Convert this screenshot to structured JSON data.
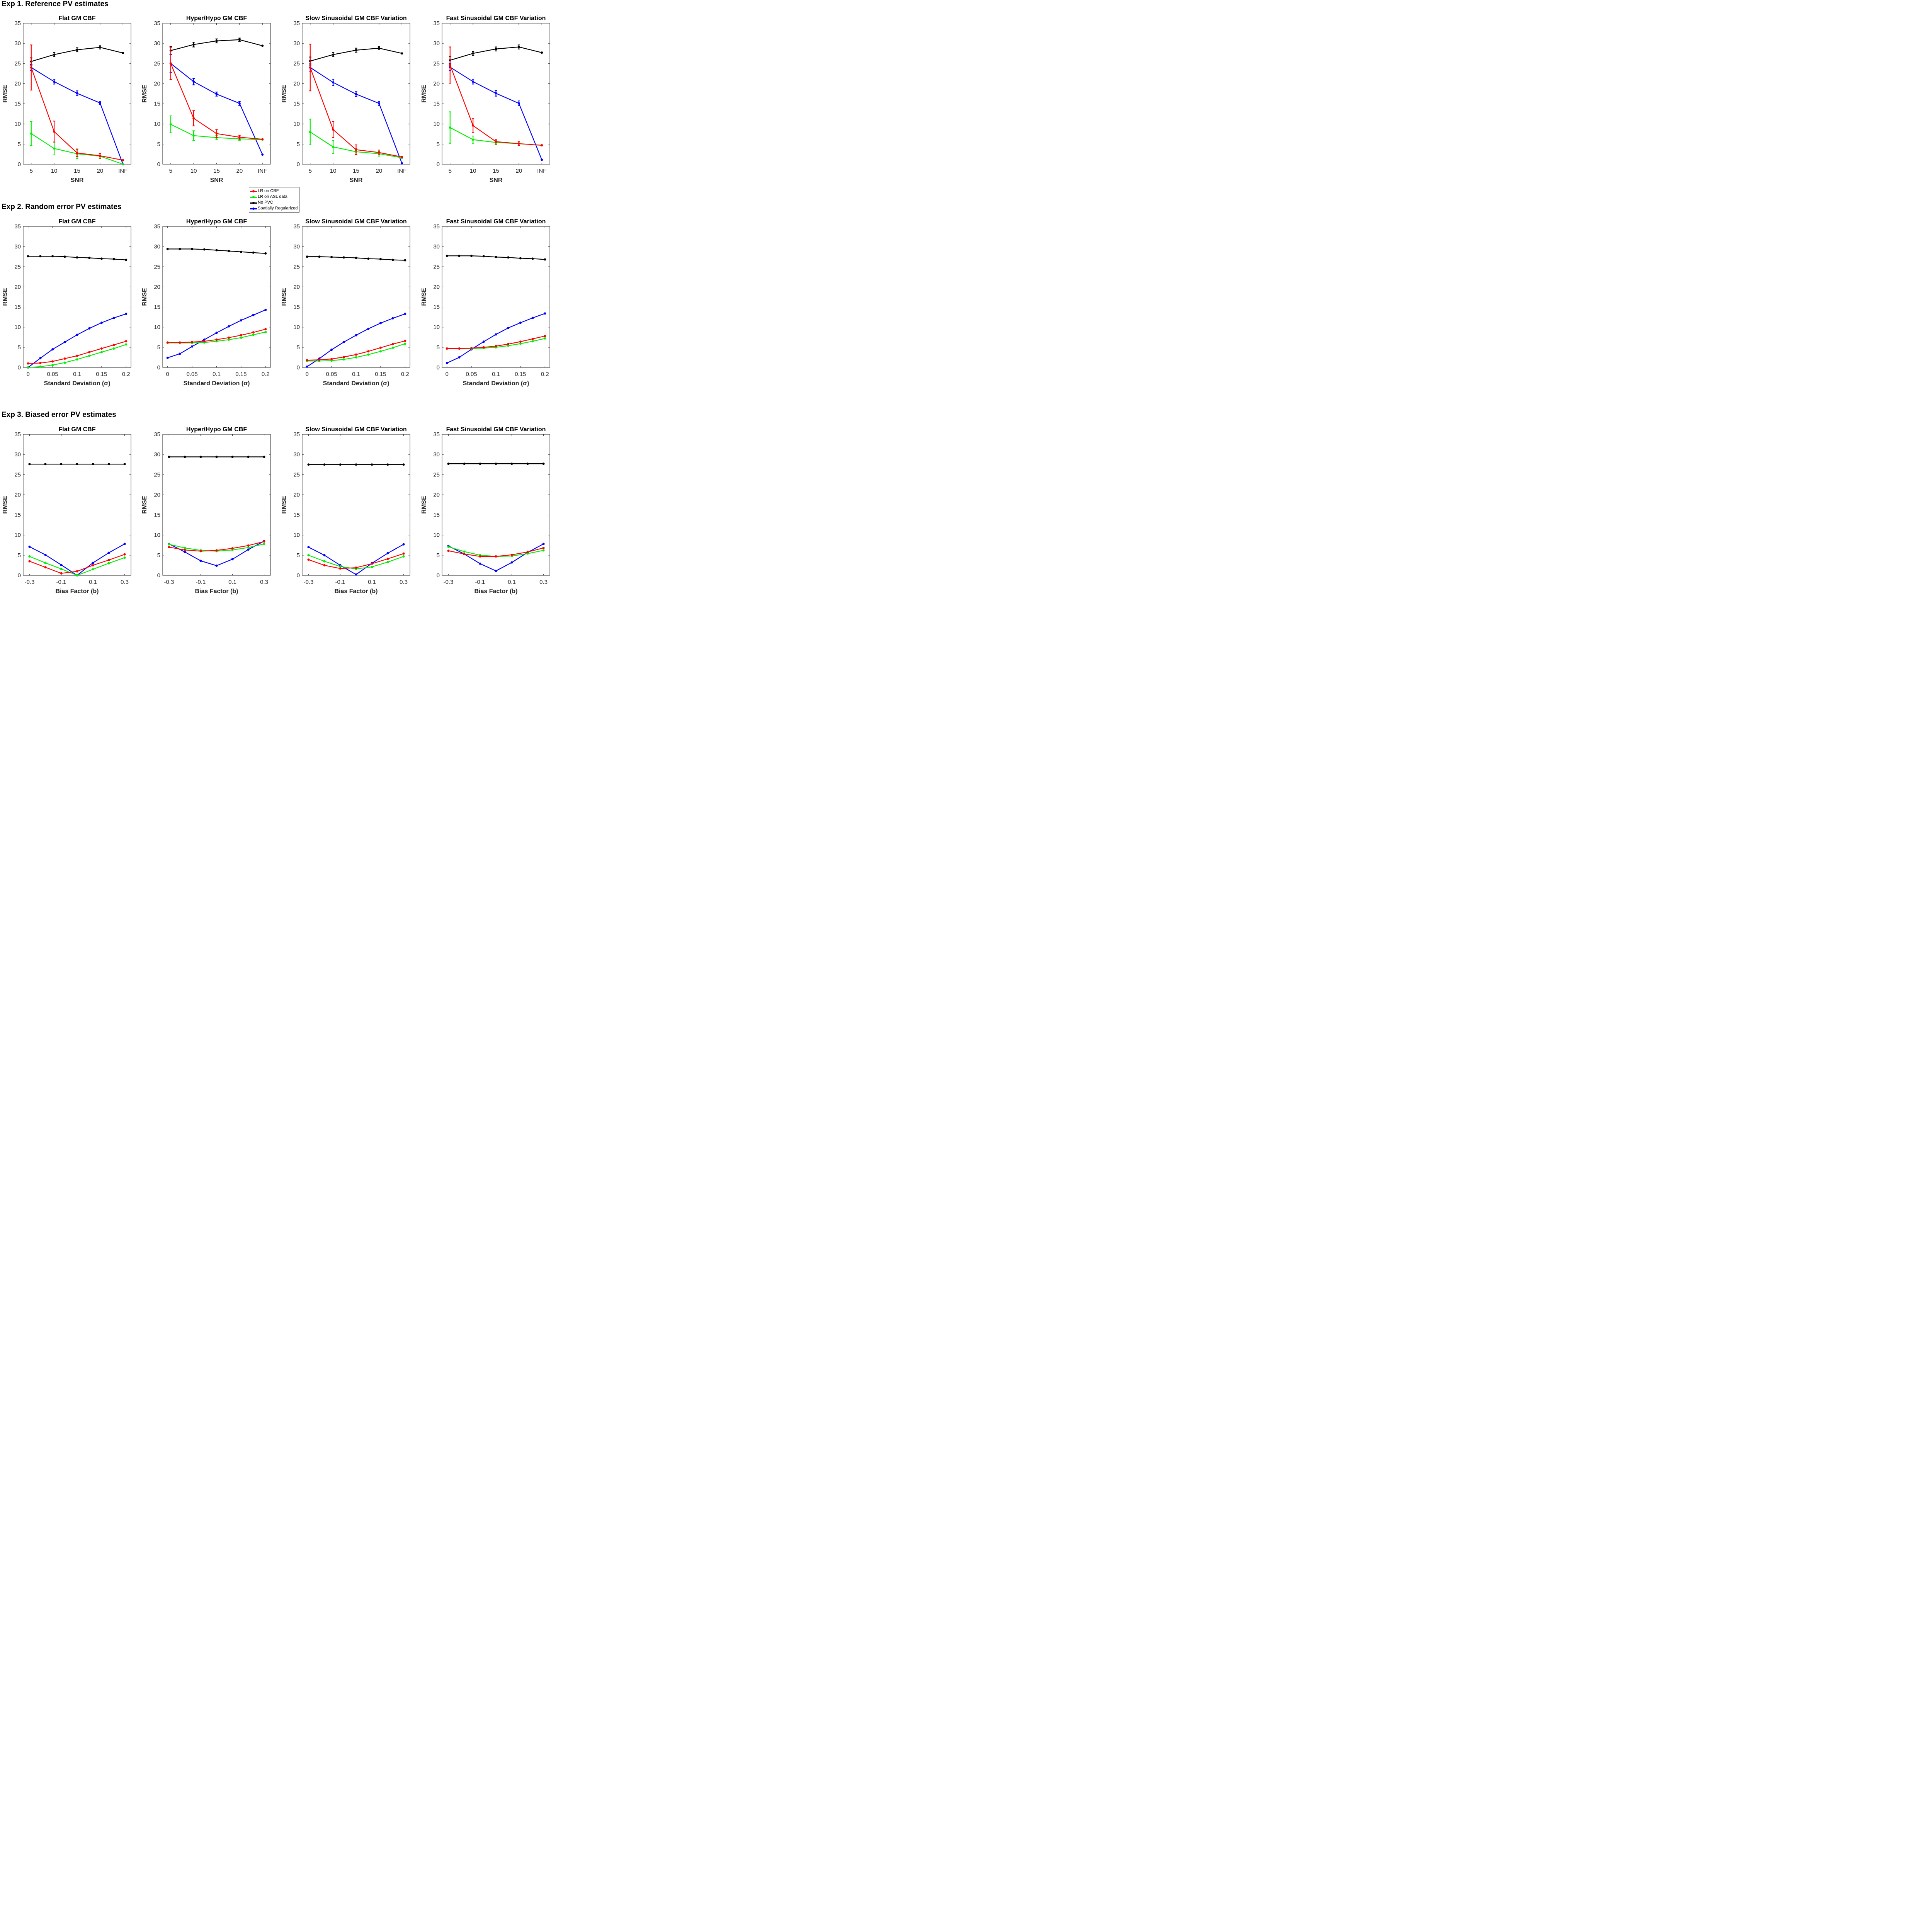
{
  "sections": [
    {
      "title": "Exp 1. Reference PV estimates"
    },
    {
      "title": "Exp 2. Random error PV estimates"
    },
    {
      "title": "Exp 3. Biased error PV estimates"
    }
  ],
  "legend": [
    {
      "name": "LR on CBF",
      "color": "#ff0000"
    },
    {
      "name": "LR on ASL data",
      "color": "#00ee00"
    },
    {
      "name": "No PVC",
      "color": "#000000"
    },
    {
      "name": "Spatially Regularized",
      "color": "#0000ff"
    }
  ],
  "chart_data": [
    {
      "type": "line",
      "section": 0,
      "title": "Flat GM CBF",
      "xlabel": "SNR",
      "ylabel": "RMSE",
      "ylim": [
        0,
        35
      ],
      "yticks": [
        0,
        5,
        10,
        15,
        20,
        25,
        30,
        35
      ],
      "categories": [
        "5",
        "10",
        "15",
        "20",
        "INF"
      ],
      "series": [
        {
          "name": "LR on CBF",
          "values": [
            24.0,
            8.1,
            2.8,
            2.1,
            1.0
          ],
          "err": [
            5.6,
            2.6,
            0.9,
            0.6,
            0
          ]
        },
        {
          "name": "LR on ASL data",
          "values": [
            7.6,
            3.9,
            2.6,
            2.0,
            0.0
          ],
          "err": [
            3.0,
            1.6,
            1.2,
            0.6,
            0
          ]
        },
        {
          "name": "No PVC",
          "values": [
            25.5,
            27.2,
            28.4,
            29.0,
            27.6
          ],
          "err": [
            0.9,
            0.5,
            0.5,
            0.4,
            0
          ]
        },
        {
          "name": "Spatially Regularized",
          "values": [
            24.0,
            20.5,
            17.6,
            15.2,
            0.0
          ],
          "err": [
            0.8,
            0.6,
            0.6,
            0.4,
            0
          ]
        }
      ]
    },
    {
      "type": "line",
      "section": 0,
      "title": "Hyper/Hypo GM CBF",
      "xlabel": "SNR",
      "ylabel": "RMSE",
      "ylim": [
        0,
        35
      ],
      "yticks": [
        0,
        5,
        10,
        15,
        20,
        25,
        30,
        35
      ],
      "categories": [
        "5",
        "10",
        "15",
        "20",
        "INF"
      ],
      "series": [
        {
          "name": "LR on CBF",
          "values": [
            25.0,
            11.4,
            7.6,
            6.7,
            6.2
          ],
          "err": [
            4.0,
            1.9,
            1.0,
            0.5,
            0
          ]
        },
        {
          "name": "LR on ASL data",
          "values": [
            9.9,
            7.1,
            6.6,
            6.3,
            6.1
          ],
          "err": [
            2.1,
            1.2,
            0.5,
            0.4,
            0
          ]
        },
        {
          "name": "No PVC",
          "values": [
            28.2,
            29.7,
            30.6,
            30.9,
            29.4
          ],
          "err": [
            1.0,
            0.6,
            0.5,
            0.4,
            0
          ]
        },
        {
          "name": "Spatially Regularized",
          "values": [
            25.0,
            20.5,
            17.4,
            15.1,
            2.4
          ],
          "err": [
            2.2,
            0.8,
            0.5,
            0.5,
            0
          ]
        }
      ]
    },
    {
      "type": "line",
      "section": 0,
      "title": "Slow Sinusoidal GM CBF Variation",
      "xlabel": "SNR",
      "ylabel": "RMSE",
      "ylim": [
        0,
        35
      ],
      "yticks": [
        0,
        5,
        10,
        15,
        20,
        25,
        30,
        35
      ],
      "categories": [
        "5",
        "10",
        "15",
        "20",
        "INF"
      ],
      "series": [
        {
          "name": "LR on CBF",
          "values": [
            24.0,
            8.6,
            3.6,
            2.9,
            1.8
          ],
          "err": [
            5.8,
            2.0,
            1.2,
            0.6,
            0
          ]
        },
        {
          "name": "LR on ASL data",
          "values": [
            8.0,
            4.3,
            3.1,
            2.6,
            1.6
          ],
          "err": [
            3.2,
            1.6,
            0.8,
            0.6,
            0
          ]
        },
        {
          "name": "No PVC",
          "values": [
            25.6,
            27.2,
            28.3,
            28.8,
            27.5
          ],
          "err": [
            1.0,
            0.5,
            0.5,
            0.4,
            0
          ]
        },
        {
          "name": "Spatially Regularized",
          "values": [
            24.0,
            20.3,
            17.4,
            15.1,
            0.2
          ],
          "err": [
            0.9,
            0.8,
            0.6,
            0.5,
            0
          ]
        }
      ]
    },
    {
      "type": "line",
      "section": 0,
      "title": "Fast Sinusoidal GM CBF Variation",
      "xlabel": "SNR",
      "ylabel": "RMSE",
      "ylim": [
        0,
        35
      ],
      "yticks": [
        0,
        5,
        10,
        15,
        20,
        25,
        30,
        35
      ],
      "categories": [
        "5",
        "10",
        "15",
        "20",
        "INF"
      ],
      "series": [
        {
          "name": "LR on CBF",
          "values": [
            24.6,
            9.6,
            5.6,
            5.1,
            4.7
          ],
          "err": [
            4.5,
            1.7,
            0.6,
            0.5,
            0
          ]
        },
        {
          "name": "LR on ASL data",
          "values": [
            9.1,
            6.1,
            5.4,
            5.1,
            4.7
          ],
          "err": [
            3.9,
            0.9,
            0.5,
            0.4,
            0
          ]
        },
        {
          "name": "No PVC",
          "values": [
            25.8,
            27.5,
            28.6,
            29.1,
            27.7
          ],
          "err": [
            0.9,
            0.5,
            0.5,
            0.5,
            0
          ]
        },
        {
          "name": "Spatially Regularized",
          "values": [
            24.1,
            20.5,
            17.6,
            15.1,
            1.1
          ],
          "err": [
            0.9,
            0.6,
            0.7,
            0.6,
            0
          ]
        }
      ]
    },
    {
      "type": "line",
      "section": 1,
      "title": "Flat GM CBF",
      "xlabel": "Standard Deviation (σ)",
      "ylabel": "RMSE",
      "ylim": [
        0,
        35
      ],
      "yticks": [
        0,
        5,
        10,
        15,
        20,
        25,
        30,
        35
      ],
      "x": [
        0,
        0.025,
        0.05,
        0.075,
        0.1,
        0.125,
        0.15,
        0.175,
        0.2
      ],
      "xticks": [
        0,
        0.05,
        0.1,
        0.15,
        0.2
      ],
      "xticklabels": [
        "0",
        "0.05",
        "0.1",
        "0.15",
        "0.2"
      ],
      "xlim": [
        -0.01,
        0.21
      ],
      "series": [
        {
          "name": "LR on CBF",
          "values": [
            1.0,
            1.1,
            1.5,
            2.2,
            2.9,
            3.8,
            4.7,
            5.6,
            6.5
          ]
        },
        {
          "name": "LR on ASL data",
          "values": [
            0.0,
            0.2,
            0.6,
            1.2,
            2.0,
            2.9,
            3.8,
            4.7,
            5.7
          ]
        },
        {
          "name": "No PVC",
          "values": [
            27.6,
            27.6,
            27.6,
            27.5,
            27.3,
            27.2,
            27.0,
            26.9,
            26.7
          ]
        },
        {
          "name": "Spatially Regularized",
          "values": [
            0.0,
            2.3,
            4.5,
            6.3,
            8.1,
            9.7,
            11.1,
            12.3,
            13.3
          ]
        }
      ]
    },
    {
      "type": "line",
      "section": 1,
      "title": "Hyper/Hypo GM CBF",
      "xlabel": "Standard Deviation (σ)",
      "ylabel": "RMSE",
      "ylim": [
        0,
        35
      ],
      "yticks": [
        0,
        5,
        10,
        15,
        20,
        25,
        30,
        35
      ],
      "x": [
        0,
        0.025,
        0.05,
        0.075,
        0.1,
        0.125,
        0.15,
        0.175,
        0.2
      ],
      "xticks": [
        0,
        0.05,
        0.1,
        0.15,
        0.2
      ],
      "xticklabels": [
        "0",
        "0.05",
        "0.1",
        "0.15",
        "0.2"
      ],
      "xlim": [
        -0.01,
        0.21
      ],
      "series": [
        {
          "name": "LR on CBF",
          "values": [
            6.2,
            6.2,
            6.3,
            6.5,
            6.9,
            7.4,
            8.0,
            8.7,
            9.5
          ]
        },
        {
          "name": "LR on ASL data",
          "values": [
            6.1,
            6.1,
            6.1,
            6.2,
            6.5,
            6.9,
            7.4,
            8.1,
            8.8
          ]
        },
        {
          "name": "No PVC",
          "values": [
            29.4,
            29.4,
            29.4,
            29.3,
            29.1,
            28.9,
            28.7,
            28.5,
            28.3
          ]
        },
        {
          "name": "Spatially Regularized",
          "values": [
            2.4,
            3.4,
            5.2,
            6.9,
            8.6,
            10.2,
            11.7,
            13.0,
            14.3
          ]
        }
      ]
    },
    {
      "type": "line",
      "section": 1,
      "title": "Slow Sinusoidal GM CBF Variation",
      "xlabel": "Standard Deviation (σ)",
      "ylabel": "RMSE",
      "ylim": [
        0,
        35
      ],
      "yticks": [
        0,
        5,
        10,
        15,
        20,
        25,
        30,
        35
      ],
      "x": [
        0,
        0.025,
        0.05,
        0.075,
        0.1,
        0.125,
        0.15,
        0.175,
        0.2
      ],
      "xticks": [
        0,
        0.05,
        0.1,
        0.15,
        0.2
      ],
      "xticklabels": [
        "0",
        "0.05",
        "0.1",
        "0.15",
        "0.2"
      ],
      "xlim": [
        -0.01,
        0.21
      ],
      "series": [
        {
          "name": "LR on CBF",
          "values": [
            1.8,
            1.9,
            2.1,
            2.6,
            3.2,
            4.0,
            4.9,
            5.8,
            6.6
          ]
        },
        {
          "name": "LR on ASL data",
          "values": [
            1.6,
            1.6,
            1.7,
            2.0,
            2.5,
            3.2,
            4.0,
            4.9,
            5.9
          ]
        },
        {
          "name": "No PVC",
          "values": [
            27.5,
            27.5,
            27.4,
            27.3,
            27.2,
            27.0,
            26.9,
            26.7,
            26.6
          ]
        },
        {
          "name": "Spatially Regularized",
          "values": [
            0.2,
            2.2,
            4.4,
            6.3,
            8.0,
            9.6,
            11.0,
            12.2,
            13.3
          ]
        }
      ]
    },
    {
      "type": "line",
      "section": 1,
      "title": "Fast Sinusoidal GM CBF Variation",
      "xlabel": "Standard Deviation (σ)",
      "ylabel": "RMSE",
      "ylim": [
        0,
        35
      ],
      "yticks": [
        0,
        5,
        10,
        15,
        20,
        25,
        30,
        35
      ],
      "x": [
        0,
        0.025,
        0.05,
        0.075,
        0.1,
        0.125,
        0.15,
        0.175,
        0.2
      ],
      "xticks": [
        0,
        0.05,
        0.1,
        0.15,
        0.2
      ],
      "xticklabels": [
        "0",
        "0.05",
        "0.1",
        "0.15",
        "0.2"
      ],
      "xlim": [
        -0.01,
        0.21
      ],
      "series": [
        {
          "name": "LR on CBF",
          "values": [
            4.7,
            4.7,
            4.8,
            5.0,
            5.3,
            5.8,
            6.4,
            7.1,
            7.8
          ]
        },
        {
          "name": "LR on ASL data",
          "values": [
            4.7,
            4.7,
            4.7,
            4.8,
            5.0,
            5.4,
            5.9,
            6.5,
            7.2
          ]
        },
        {
          "name": "No PVC",
          "values": [
            27.7,
            27.7,
            27.7,
            27.6,
            27.4,
            27.3,
            27.1,
            27.0,
            26.8
          ]
        },
        {
          "name": "Spatially Regularized",
          "values": [
            1.1,
            2.5,
            4.5,
            6.4,
            8.2,
            9.8,
            11.1,
            12.3,
            13.4
          ]
        }
      ]
    },
    {
      "type": "line",
      "section": 2,
      "title": "Flat GM CBF",
      "xlabel": "Bias Factor (b)",
      "ylabel": "RMSE",
      "ylim": [
        0,
        35
      ],
      "yticks": [
        0,
        5,
        10,
        15,
        20,
        25,
        30,
        35
      ],
      "x": [
        -0.3,
        -0.2,
        -0.1,
        0,
        0.1,
        0.2,
        0.3
      ],
      "xticks": [
        -0.3,
        -0.1,
        0.1,
        0.3
      ],
      "xticklabels": [
        "-0.3",
        "-0.1",
        "0.1",
        "0.3"
      ],
      "xlim": [
        -0.34,
        0.34
      ],
      "series": [
        {
          "name": "LR on CBF",
          "values": [
            3.5,
            2.0,
            0.5,
            1.0,
            2.5,
            3.8,
            5.2
          ]
        },
        {
          "name": "LR on ASL data",
          "values": [
            4.7,
            3.1,
            1.6,
            0.0,
            1.5,
            3.0,
            4.4
          ]
        },
        {
          "name": "No PVC",
          "values": [
            27.6,
            27.6,
            27.6,
            27.6,
            27.6,
            27.6,
            27.6
          ]
        },
        {
          "name": "Spatially Regularized",
          "values": [
            7.1,
            5.1,
            2.6,
            0.0,
            3.1,
            5.6,
            7.8
          ]
        }
      ]
    },
    {
      "type": "line",
      "section": 2,
      "title": "Hyper/Hypo GM CBF",
      "xlabel": "Bias Factor (b)",
      "ylabel": "RMSE",
      "ylim": [
        0,
        35
      ],
      "yticks": [
        0,
        5,
        10,
        15,
        20,
        25,
        30,
        35
      ],
      "x": [
        -0.3,
        -0.2,
        -0.1,
        0,
        0.1,
        0.2,
        0.3
      ],
      "xticks": [
        -0.3,
        -0.1,
        0.1,
        0.3
      ],
      "xticklabels": [
        "-0.3",
        "-0.1",
        "0.1",
        "0.3"
      ],
      "xlim": [
        -0.34,
        0.34
      ],
      "series": [
        {
          "name": "LR on CBF",
          "values": [
            7.0,
            6.3,
            6.0,
            6.2,
            6.7,
            7.4,
            8.4
          ]
        },
        {
          "name": "LR on ASL data",
          "values": [
            7.7,
            6.8,
            6.2,
            6.0,
            6.3,
            6.9,
            7.8
          ]
        },
        {
          "name": "No PVC",
          "values": [
            29.4,
            29.4,
            29.4,
            29.4,
            29.4,
            29.4,
            29.4
          ]
        },
        {
          "name": "Spatially Regularized",
          "values": [
            7.8,
            5.8,
            3.6,
            2.4,
            4.0,
            6.4,
            8.5
          ]
        }
      ]
    },
    {
      "type": "line",
      "section": 2,
      "title": "Slow Sinusoidal GM CBF Variation",
      "xlabel": "Bias Factor (b)",
      "ylabel": "RMSE",
      "ylim": [
        0,
        35
      ],
      "yticks": [
        0,
        5,
        10,
        15,
        20,
        25,
        30,
        35
      ],
      "x": [
        -0.3,
        -0.2,
        -0.1,
        0,
        0.1,
        0.2,
        0.3
      ],
      "xticks": [
        -0.3,
        -0.1,
        0.1,
        0.3
      ],
      "xticklabels": [
        "-0.3",
        "-0.1",
        "0.1",
        "0.3"
      ],
      "xlim": [
        -0.34,
        0.34
      ],
      "series": [
        {
          "name": "LR on CBF",
          "values": [
            3.9,
            2.5,
            1.7,
            1.9,
            2.9,
            4.1,
            5.4
          ]
        },
        {
          "name": "LR on ASL data",
          "values": [
            5.0,
            3.5,
            2.2,
            1.6,
            2.1,
            3.3,
            4.7
          ]
        },
        {
          "name": "No PVC",
          "values": [
            27.5,
            27.5,
            27.5,
            27.5,
            27.5,
            27.5,
            27.5
          ]
        },
        {
          "name": "Spatially Regularized",
          "values": [
            7.0,
            5.0,
            2.5,
            0.2,
            3.0,
            5.5,
            7.7
          ]
        }
      ]
    },
    {
      "type": "line",
      "section": 2,
      "title": "Fast Sinusoidal GM CBF Variation",
      "xlabel": "Bias Factor (b)",
      "ylabel": "RMSE",
      "ylim": [
        0,
        35
      ],
      "yticks": [
        0,
        5,
        10,
        15,
        20,
        25,
        30,
        35
      ],
      "x": [
        -0.3,
        -0.2,
        -0.1,
        0,
        0.1,
        0.2,
        0.3
      ],
      "xticks": [
        -0.3,
        -0.1,
        0.1,
        0.3
      ],
      "xticklabels": [
        "-0.3",
        "-0.1",
        "0.1",
        "0.3"
      ],
      "xlim": [
        -0.34,
        0.34
      ],
      "series": [
        {
          "name": "LR on CBF",
          "values": [
            6.1,
            5.3,
            4.7,
            4.7,
            5.1,
            5.8,
            6.8
          ]
        },
        {
          "name": "LR on ASL data",
          "values": [
            7.1,
            5.9,
            5.0,
            4.7,
            4.8,
            5.4,
            6.2
          ]
        },
        {
          "name": "No PVC",
          "values": [
            27.7,
            27.7,
            27.7,
            27.7,
            27.7,
            27.7,
            27.7
          ]
        },
        {
          "name": "Spatially Regularized",
          "values": [
            7.3,
            5.3,
            2.9,
            1.1,
            3.2,
            5.7,
            7.8
          ]
        }
      ]
    }
  ]
}
